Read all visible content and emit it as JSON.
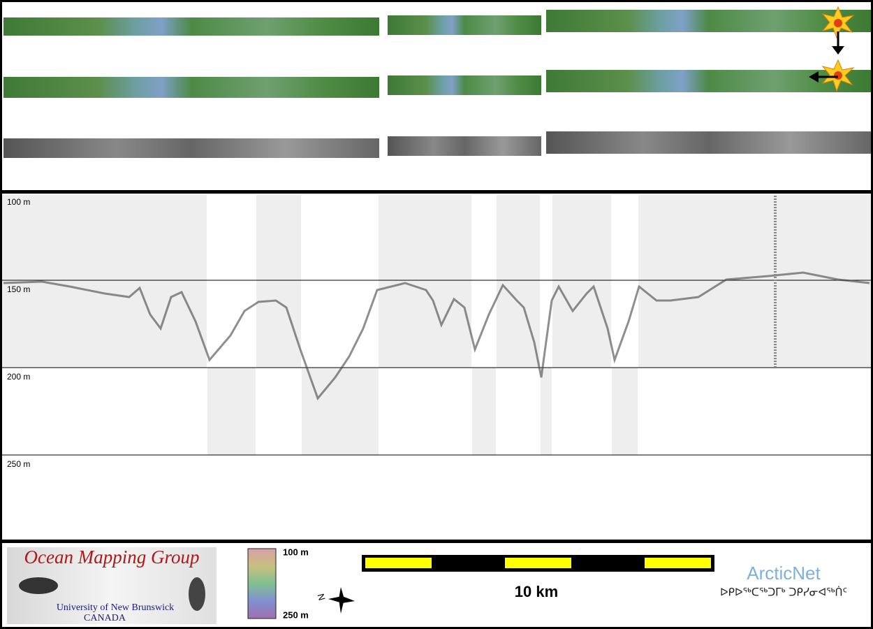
{
  "profile": {
    "depth_labels": [
      "100 m",
      "150 m",
      "200 m",
      "250 m"
    ]
  },
  "footer": {
    "logo": {
      "title": "Ocean Mapping Group",
      "line1": "University of New Brunswick",
      "line2": "CANADA"
    },
    "colorbar": {
      "top_label": "100 m",
      "bottom_label": "250 m"
    },
    "compass": {
      "label": "N"
    },
    "scalebar": {
      "label": "10 km"
    },
    "partner": {
      "name": "ArcticNet",
      "subtitle": "ᐅᑭᐅᖅᑕᖅᑐᒥᒃ ᑐᑭᓯᓂᐊᖅᑏᑦ"
    }
  }
}
